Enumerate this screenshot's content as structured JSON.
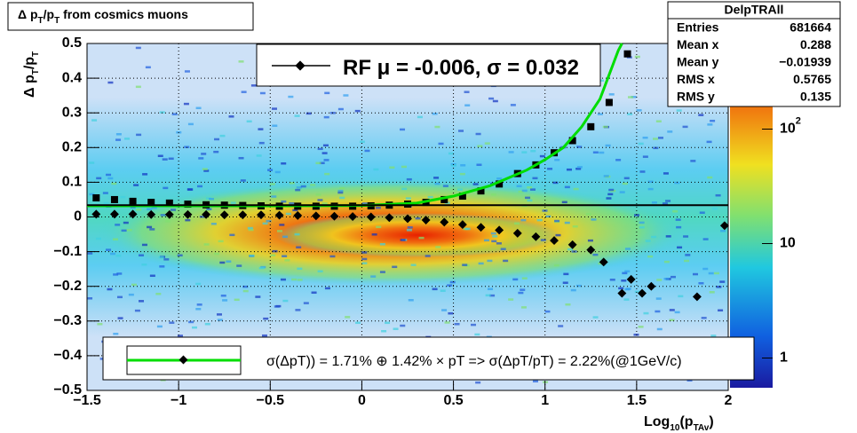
{
  "chart_data": {
    "type": "profile",
    "title_parts": [
      "Δ p",
      "T",
      "/p",
      "T",
      " from cosmics muons"
    ],
    "ylabel_parts": [
      "Δ p",
      "T",
      "/p",
      "T"
    ],
    "xlabel_parts": [
      "Log",
      "10",
      "(p",
      "TAv",
      ")"
    ],
    "xlim": [
      -1.5,
      2
    ],
    "ylim": [
      -0.5,
      0.5
    ],
    "xticks": [
      {
        "value": -1.5,
        "label": "−1.5"
      },
      {
        "value": -1,
        "label": "−1"
      },
      {
        "value": -0.5,
        "label": "−0.5"
      },
      0,
      0.5,
      1,
      1.5,
      2
    ],
    "yticks": [
      {
        "value": -0.5,
        "label": "−0.5"
      },
      {
        "value": -0.4,
        "label": "−0.4"
      },
      {
        "value": -0.3,
        "label": "−0.3"
      },
      {
        "value": -0.2,
        "label": "−0.2"
      },
      {
        "value": -0.1,
        "label": "−0.1"
      },
      0,
      0.1,
      0.2,
      0.3,
      0.4,
      0.5
    ],
    "grid": true,
    "zlim": [
      0.55,
      550
    ],
    "zscale": "log",
    "zticks": [
      {
        "value": 1,
        "label": "1"
      },
      {
        "value": 10,
        "label": "10"
      },
      {
        "value": 100,
        "label": "10",
        "exponent": "2"
      }
    ],
    "series": [
      {
        "name": "rms",
        "marker": "square",
        "color": "#000000",
        "x": [
          -1.45,
          -1.35,
          -1.25,
          -1.15,
          -1.05,
          -0.95,
          -0.85,
          -0.75,
          -0.65,
          -0.55,
          -0.45,
          -0.35,
          -0.25,
          -0.15,
          -0.05,
          0.05,
          0.15,
          0.25,
          0.35,
          0.45,
          0.55,
          0.65,
          0.75,
          0.85,
          0.95,
          1.05,
          1.15,
          1.25,
          1.35,
          1.45
        ],
        "values": [
          0.055,
          0.05,
          0.045,
          0.042,
          0.04,
          0.037,
          0.035,
          0.034,
          0.033,
          0.032,
          0.031,
          0.031,
          0.031,
          0.031,
          0.031,
          0.032,
          0.034,
          0.037,
          0.042,
          0.05,
          0.06,
          0.075,
          0.095,
          0.125,
          0.15,
          0.185,
          0.22,
          0.26,
          0.33,
          0.47
        ]
      },
      {
        "name": "mean",
        "marker": "diamond",
        "color": "#000000",
        "x": [
          -1.45,
          -1.35,
          -1.25,
          -1.15,
          -1.05,
          -0.95,
          -0.85,
          -0.75,
          -0.65,
          -0.55,
          -0.45,
          -0.35,
          -0.25,
          -0.15,
          -0.05,
          0.05,
          0.15,
          0.25,
          0.35,
          0.45,
          0.55,
          0.65,
          0.75,
          0.85,
          0.95,
          1.05,
          1.15,
          1.25,
          1.32,
          1.42,
          1.47,
          1.53,
          1.58,
          1.83,
          1.98
        ],
        "values": [
          0.008,
          0.008,
          0.008,
          0.007,
          0.007,
          0.007,
          0.007,
          0.006,
          0.006,
          0.006,
          0.005,
          0.004,
          0.003,
          0.002,
          0.001,
          0,
          -0.002,
          -0.005,
          -0.009,
          -0.015,
          -0.022,
          -0.03,
          -0.038,
          -0.047,
          -0.057,
          -0.068,
          -0.08,
          -0.095,
          -0.13,
          -0.22,
          -0.18,
          -0.22,
          -0.2,
          -0.23,
          -0.025
        ]
      },
      {
        "name": "fit",
        "marker": "line",
        "color": "#00dd00",
        "x": [
          -1.5,
          -1,
          -0.5,
          0,
          0.3,
          0.5,
          0.7,
          0.9,
          1,
          1.1,
          1.2,
          1.3,
          1.4,
          1.42
        ],
        "values": [
          0.032,
          0.032,
          0.032,
          0.033,
          0.04,
          0.06,
          0.09,
          0.135,
          0.165,
          0.2,
          0.26,
          0.34,
          0.48,
          0.5
        ]
      },
      {
        "name": "rf",
        "marker": "line",
        "color": "#000000",
        "x": [
          -1.5,
          2
        ],
        "values": [
          0.034,
          0.034
        ]
      }
    ],
    "legend_top": "RF μ = -0.006, σ =   0.032",
    "legend_bottom": "σ(ΔpT)) =  1.71% ⊕  1.42% × pT => σ(ΔpT/pT) =  2.22%(@1GeV/c)",
    "stats": {
      "title": "DelpTRAll",
      "rows": [
        [
          "Entries",
          "681664"
        ],
        [
          "Mean x",
          "0.288"
        ],
        [
          "Mean y",
          "−0.01939"
        ],
        [
          "RMS x",
          "0.5765"
        ],
        [
          "RMS y",
          "0.135"
        ]
      ]
    }
  }
}
